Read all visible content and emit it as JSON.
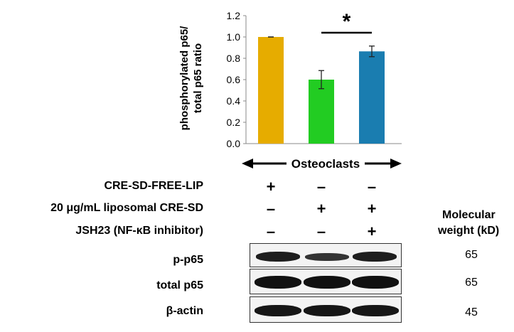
{
  "chart_data": {
    "type": "bar",
    "categories": [
      "CRE-SD-FREE-LIP",
      "20 μg/mL liposomal CRE-SD",
      "20 μg/mL liposomal CRE-SD + JSH23"
    ],
    "values": [
      1.0,
      0.6,
      0.865
    ],
    "errors": [
      0.0,
      0.085,
      0.05
    ],
    "colors": [
      "#E6AC00",
      "#22CC22",
      "#1A7DB0"
    ],
    "ylabel_line1": "phosphorylated p65/",
    "ylabel_line2": "total p65 ratio",
    "ylim": [
      0,
      1.2
    ],
    "yticks": [
      "0.0",
      "0.2",
      "0.4",
      "0.6",
      "0.8",
      "1.0",
      "1.2"
    ],
    "significance": {
      "symbol": "*",
      "between": [
        1,
        2
      ]
    },
    "group_label": "Osteoclasts"
  },
  "conditions": [
    {
      "label": "CRE-SD-FREE-LIP",
      "signs": [
        "+",
        "–",
        "–"
      ]
    },
    {
      "label": "20 μg/mL liposomal CRE-SD",
      "signs": [
        "–",
        "+",
        "+"
      ]
    },
    {
      "label": "JSH23 (NF-κB inhibitor)",
      "signs": [
        "–",
        "–",
        "+"
      ]
    }
  ],
  "mw_header_line1": "Molecular",
  "mw_header_line2": "weight (kD)",
  "blots": [
    {
      "label": "p-p65",
      "mw": "65"
    },
    {
      "label": "total p65",
      "mw": "65"
    },
    {
      "label": "β-actin",
      "mw": "45"
    }
  ]
}
